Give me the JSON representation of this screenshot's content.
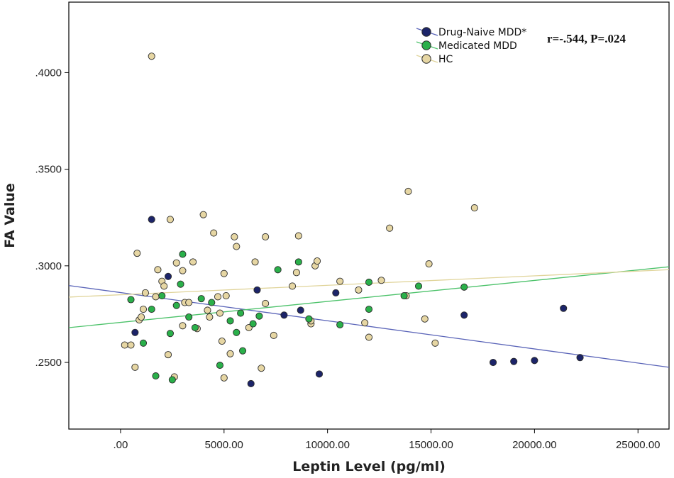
{
  "chart_data": {
    "type": "scatter",
    "title": "",
    "xlabel": "Leptin Level (pg/ml)",
    "ylabel": "FA Value",
    "xlim": [
      -2500,
      26500
    ],
    "ylim": [
      0.2155,
      0.4365
    ],
    "x_ticks": [
      0,
      5000,
      10000,
      15000,
      20000,
      25000
    ],
    "x_tick_labels": [
      ".00",
      "5000.00",
      "10000.00",
      "15000.00",
      "20000.00",
      "25000.00"
    ],
    "y_ticks": [
      0.25,
      0.3,
      0.35,
      0.4
    ],
    "y_tick_labels": [
      ".2500",
      ".3000",
      ".3500",
      ".4000"
    ],
    "grid": false,
    "legend_position": "top-right",
    "annotation": "r=-.544, P=.024",
    "series": [
      {
        "name": "Drug-Naive MDD*",
        "color": "#1c2469",
        "fit_line": {
          "color": "#5a64b8",
          "x": [
            -2500,
            26500
          ],
          "y": [
            0.2898,
            0.2475
          ]
        },
        "points": [
          [
            700,
            0.2655
          ],
          [
            1500,
            0.324
          ],
          [
            2300,
            0.2945
          ],
          [
            6300,
            0.239
          ],
          [
            6600,
            0.2875
          ],
          [
            7900,
            0.2745
          ],
          [
            8700,
            0.277
          ],
          [
            9600,
            0.244
          ],
          [
            10400,
            0.286
          ],
          [
            16600,
            0.2745
          ],
          [
            18000,
            0.25
          ],
          [
            19000,
            0.2505
          ],
          [
            20000,
            0.251
          ],
          [
            21400,
            0.278
          ],
          [
            22200,
            0.2525
          ]
        ]
      },
      {
        "name": "Medicated MDD",
        "color": "#2ab04a",
        "fit_line": {
          "color": "#4cc26a",
          "x": [
            -2500,
            26500
          ],
          "y": [
            0.268,
            0.2995
          ]
        },
        "points": [
          [
            500,
            0.2825
          ],
          [
            1100,
            0.26
          ],
          [
            1500,
            0.2775
          ],
          [
            1700,
            0.243
          ],
          [
            2000,
            0.2845
          ],
          [
            2400,
            0.265
          ],
          [
            2500,
            0.241
          ],
          [
            2700,
            0.2795
          ],
          [
            2900,
            0.2905
          ],
          [
            3000,
            0.306
          ],
          [
            3300,
            0.2735
          ],
          [
            3600,
            0.268
          ],
          [
            3900,
            0.283
          ],
          [
            4400,
            0.281
          ],
          [
            4800,
            0.2485
          ],
          [
            5300,
            0.2715
          ],
          [
            5600,
            0.2655
          ],
          [
            5800,
            0.2755
          ],
          [
            5900,
            0.256
          ],
          [
            6400,
            0.27
          ],
          [
            6700,
            0.274
          ],
          [
            7600,
            0.298
          ],
          [
            8600,
            0.302
          ],
          [
            9100,
            0.2725
          ],
          [
            10600,
            0.2695
          ],
          [
            12000,
            0.2775
          ],
          [
            12000,
            0.2915
          ],
          [
            13700,
            0.2845
          ],
          [
            14400,
            0.2895
          ],
          [
            16600,
            0.289
          ]
        ]
      },
      {
        "name": "HC",
        "color": "#e6d6a3",
        "fit_line": {
          "color": "#e0d49a",
          "x": [
            -2500,
            26500
          ],
          "y": [
            0.2838,
            0.298
          ]
        },
        "points": [
          [
            200,
            0.259
          ],
          [
            500,
            0.259
          ],
          [
            700,
            0.2475
          ],
          [
            800,
            0.3065
          ],
          [
            900,
            0.272
          ],
          [
            1000,
            0.2735
          ],
          [
            1100,
            0.2775
          ],
          [
            1200,
            0.286
          ],
          [
            1500,
            0.4085
          ],
          [
            1700,
            0.284
          ],
          [
            1800,
            0.298
          ],
          [
            2000,
            0.292
          ],
          [
            2100,
            0.2895
          ],
          [
            2300,
            0.254
          ],
          [
            2400,
            0.324
          ],
          [
            2600,
            0.2425
          ],
          [
            2700,
            0.3015
          ],
          [
            3000,
            0.269
          ],
          [
            3000,
            0.2975
          ],
          [
            3100,
            0.281
          ],
          [
            3300,
            0.281
          ],
          [
            3500,
            0.302
          ],
          [
            3700,
            0.2675
          ],
          [
            4000,
            0.3265
          ],
          [
            4200,
            0.277
          ],
          [
            4300,
            0.2735
          ],
          [
            4500,
            0.317
          ],
          [
            4700,
            0.284
          ],
          [
            4800,
            0.2755
          ],
          [
            4900,
            0.261
          ],
          [
            5000,
            0.296
          ],
          [
            5000,
            0.242
          ],
          [
            5100,
            0.2845
          ],
          [
            5300,
            0.2545
          ],
          [
            5500,
            0.315
          ],
          [
            5600,
            0.31
          ],
          [
            6200,
            0.268
          ],
          [
            6500,
            0.302
          ],
          [
            6800,
            0.247
          ],
          [
            7000,
            0.315
          ],
          [
            7000,
            0.2805
          ],
          [
            7400,
            0.264
          ],
          [
            8300,
            0.2895
          ],
          [
            8500,
            0.2965
          ],
          [
            8600,
            0.3155
          ],
          [
            9200,
            0.27
          ],
          [
            9200,
            0.2715
          ],
          [
            9400,
            0.3
          ],
          [
            9500,
            0.3025
          ],
          [
            10600,
            0.292
          ],
          [
            11500,
            0.2875
          ],
          [
            11800,
            0.2705
          ],
          [
            12000,
            0.263
          ],
          [
            12600,
            0.2925
          ],
          [
            13000,
            0.3195
          ],
          [
            13800,
            0.2845
          ],
          [
            13900,
            0.3385
          ],
          [
            14700,
            0.2725
          ],
          [
            14900,
            0.301
          ],
          [
            15200,
            0.26
          ],
          [
            17100,
            0.33
          ]
        ]
      }
    ]
  }
}
